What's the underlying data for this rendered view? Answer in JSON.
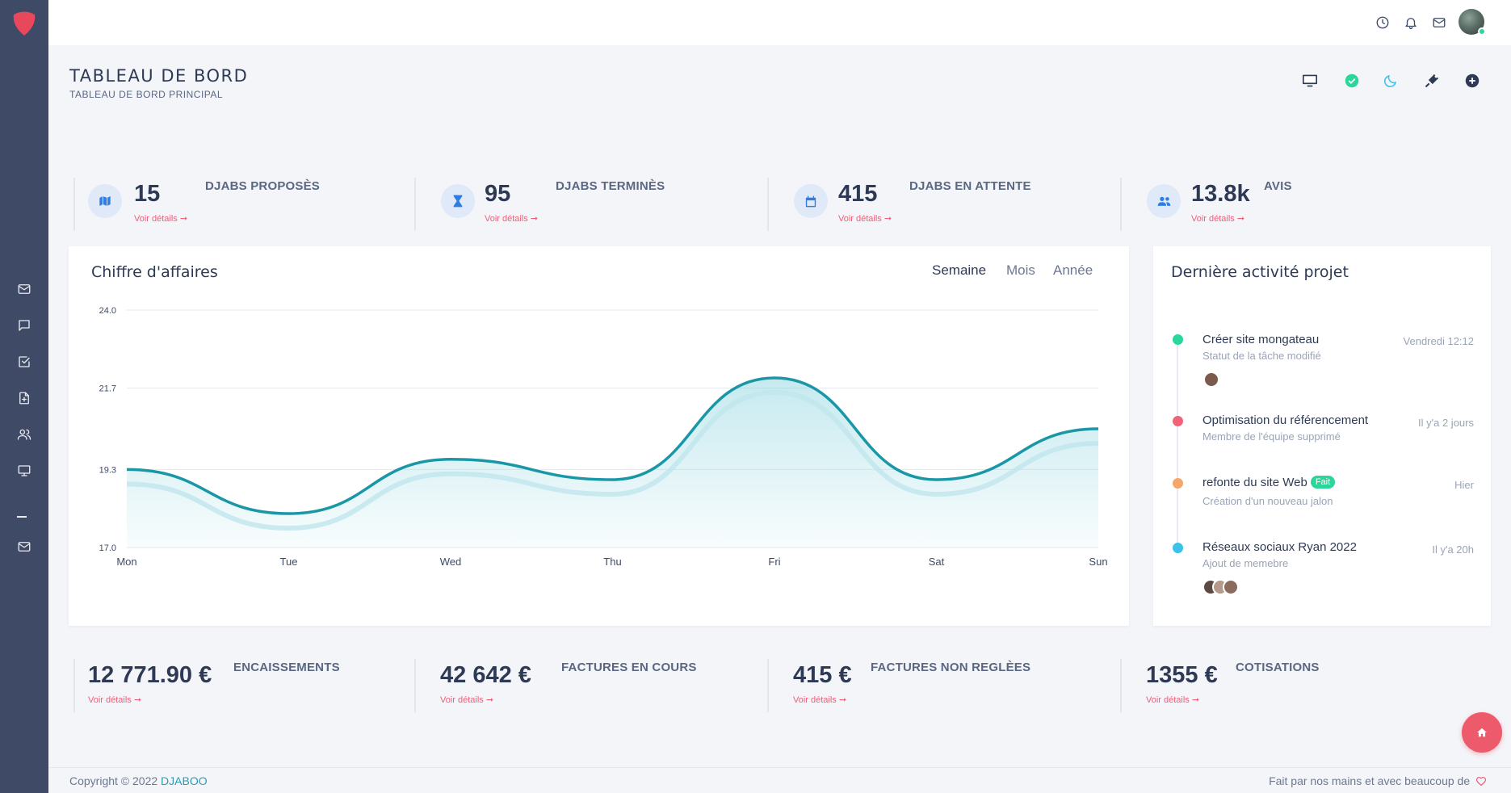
{
  "header": {
    "title": "TABLEAU DE BORD",
    "subtitle": "TABLEAU DE BORD PRINCIPAL"
  },
  "stats_top": [
    {
      "value": "15",
      "label": "DJABS PROPOSÈS",
      "link": "Voir détails ➞",
      "icon": "map-icon"
    },
    {
      "value": "95",
      "label": "DJABS TERMINÈS",
      "link": "Voir détails ➞",
      "icon": "hourglass-icon"
    },
    {
      "value": "415",
      "label": "DJABS EN ATTENTE",
      "link": "Voir détails ➞",
      "icon": "calendar-icon"
    },
    {
      "value": "13.8k",
      "label": "AVIS",
      "link": "Voir détails ➞",
      "icon": "users-icon"
    }
  ],
  "revenue": {
    "title": "Chiffre d'affaires",
    "tabs": [
      "Semaine",
      "Mois",
      "Année"
    ],
    "active_tab": "Semaine"
  },
  "chart_data": {
    "type": "area",
    "title": "Chiffre d'affaires",
    "categories": [
      "Mon",
      "Tue",
      "Wed",
      "Thu",
      "Fri",
      "Sat",
      "Sun"
    ],
    "series": [
      {
        "name": "Chiffre d'affaires",
        "values": [
          19.3,
          18.0,
          19.6,
          19.0,
          22.0,
          19.0,
          20.5
        ]
      }
    ],
    "y_ticks": [
      "24.0",
      "21.7",
      "19.3",
      "17.0"
    ],
    "ylim": [
      17.0,
      24.0
    ],
    "grid": true,
    "color": "#1a97a6"
  },
  "activity": {
    "title": "Dernière activité projet",
    "items": [
      {
        "title": "Créer site mongateau",
        "sub": "Statut de la tâche modifié",
        "time": "Vendredi 12:12",
        "color": "#2bd69b",
        "badge": ""
      },
      {
        "title": "Optimisation du référencement",
        "sub": "Membre de l'équipe supprimé",
        "time": "Il y'a 2 jours",
        "color": "#f06479",
        "badge": ""
      },
      {
        "title": "refonte du site Web",
        "sub": "Création d'un nouveau jalon",
        "time": "Hier",
        "color": "#f4a66b",
        "badge": "Fait"
      },
      {
        "title": "Réseaux sociaux Ryan 2022",
        "sub": "Ajout de memebre",
        "time": "Il y'a 20h",
        "color": "#3ac2e8",
        "badge": ""
      }
    ]
  },
  "stats_bottom": [
    {
      "value": "12 771.90 €",
      "label": "ENCAISSEMENTS",
      "link": "Voir détails ➞"
    },
    {
      "value": "42 642 €",
      "label": "FACTURES EN COURS",
      "link": "Voir détails ➞"
    },
    {
      "value": "415 €",
      "label": "FACTURES NON REGLÈES",
      "link": "Voir détails ➞"
    },
    {
      "value": "1355 €",
      "label": "COTISATIONS",
      "link": "Voir détails ➞"
    }
  ],
  "footer": {
    "copyright": "Copyright © 2022 ",
    "brand": "DJABOO",
    "made_by": "Fait par nos mains et avec beaucoup de"
  },
  "colors": {
    "sidebar": "#3f4a66",
    "accent": "#ee5f79",
    "teal": "#1a97a6"
  }
}
